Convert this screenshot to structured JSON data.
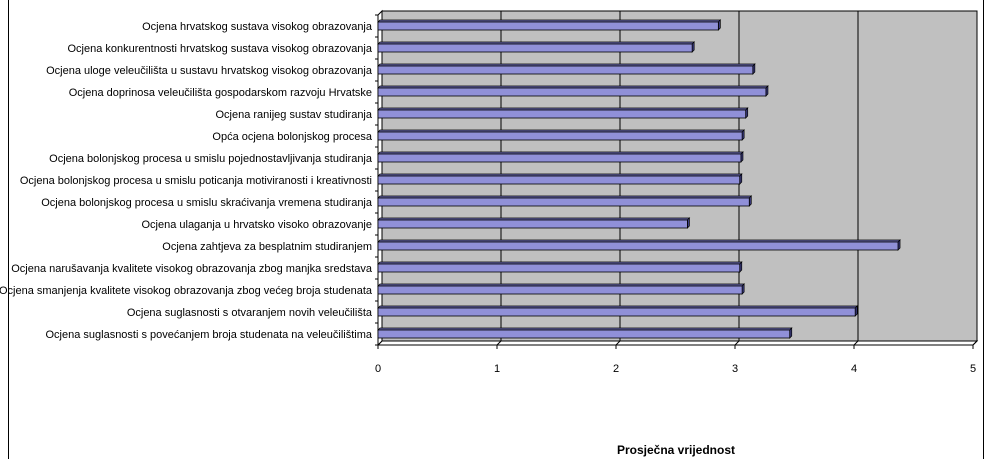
{
  "chart_data": {
    "type": "bar",
    "orientation": "horizontal",
    "categories": [
      "Ocjena hrvatskog sustava visokog obrazovanja",
      "Ocjena konkurentnosti hrvatskog sustava visokog obrazovanja",
      "Ocjena uloge veleučilišta u sustavu hrvatskog visokog obrazovanja",
      "Ocjena doprinosa veleučilišta gospodarskom razvoju Hrvatske",
      "Ocjena ranijeg sustav studiranja",
      "Opća ocjena bolonjskog procesa",
      "Ocjena bolonjskog procesa u smislu pojednostavljivanja studiranja",
      "Ocjena bolonjskog procesa u smislu poticanja motiviranosti i kreativnosti",
      "Ocjena bolonjskog procesa u smislu skraćivanja vremena studiranja",
      "Ocjena ulaganja u hrvatsko visoko obrazovanje",
      "Ocjena zahtjeva za besplatnim studiranjem",
      "Ocjena narušavanja kvalitete visokog obrazovanja zbog manjka sredstava",
      "Ocjena smanjenja kvalitete visokog obrazovanja zbog većeg broja studenata",
      "Ocjena suglasnosti s otvaranjem novih veleučilišta",
      "Ocjena suglasnosti s povećanjem broja studenata na veleučilištima"
    ],
    "values": [
      2.86,
      2.64,
      3.15,
      3.26,
      3.09,
      3.06,
      3.05,
      3.04,
      3.12,
      2.6,
      4.37,
      3.04,
      3.06,
      4.01,
      3.46
    ],
    "xlabel": "Prosječna vrijednost",
    "xlim": [
      0,
      5
    ],
    "xticks": [
      "0",
      "1",
      "2",
      "3",
      "4",
      "5"
    ],
    "grid": true,
    "colors": {
      "bar": "#9090d8",
      "bar_edge": "#000000",
      "plot_background": "#c0c0c0",
      "gridline": "#000000"
    }
  }
}
